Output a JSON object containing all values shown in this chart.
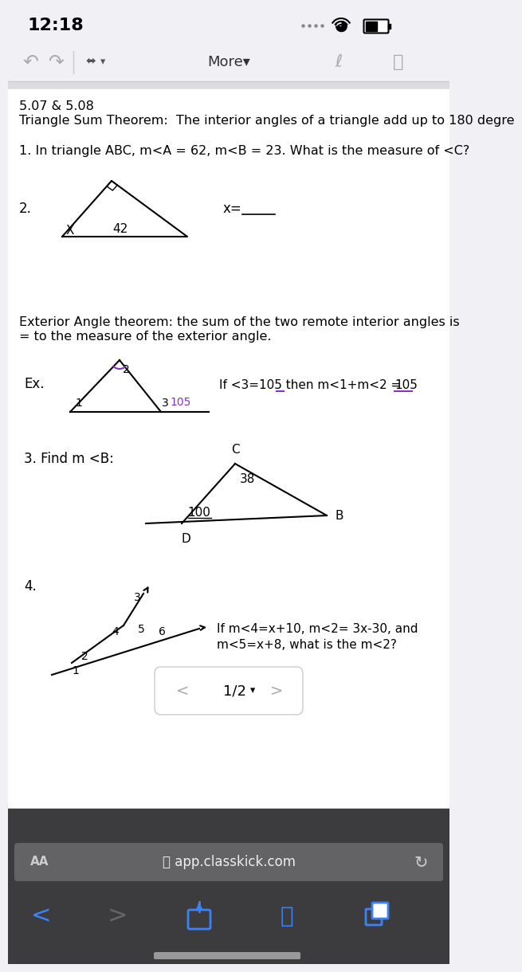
{
  "time": "12:18",
  "bg_color": "#f0f0f5",
  "content_bg": "#ffffff",
  "toolbar_bg": "#f0f0f5",
  "header_title": "5.07 & 5.08",
  "theorem_text": "Triangle Sum Theorem:  The interior angles of a triangle add up to 180 degre",
  "q1_text": "1. In triangle ABC, m<A = 62, m<B = 23. What is the measure of <C?",
  "q2_label": "2.",
  "q2_xeq": "x=",
  "ext_theorem_line1": "Exterior Angle theorem: the sum of the two remote interior angles is",
  "ext_theorem_line2": "= to the measure of the exterior angle.",
  "ex_label": "Ex.",
  "ex_note": "If <3=105 then m<1+m<2 = 105",
  "q3_text": "3. Find m <B:",
  "q4_label": "4.",
  "q4_note_line1": "If m<4=x+10, m<2= 3x-30, and",
  "q4_note_line2": "m<5=x+8, what is the m<2?",
  "page_indicator": "1/2",
  "url": "app.classkick.com",
  "bottom_bar_color": "#3c3c3e",
  "url_bar_color": "#636366"
}
